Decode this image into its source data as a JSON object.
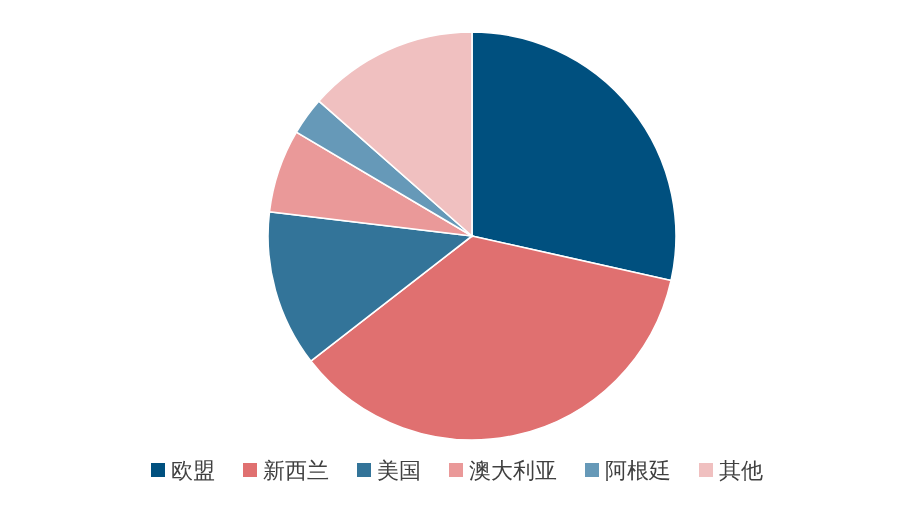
{
  "chart_data": {
    "type": "pie",
    "categories": [
      "欧盟",
      "新西兰",
      "美国",
      "澳大利亚",
      "阿根廷",
      "其他"
    ],
    "values": [
      28.5,
      36.0,
      12.4,
      6.6,
      3.0,
      13.5
    ],
    "colors": [
      "#00507f",
      "#e07070",
      "#337499",
      "#ea9999",
      "#6699b8",
      "#f0c0c0"
    ],
    "legend": "bottom"
  }
}
